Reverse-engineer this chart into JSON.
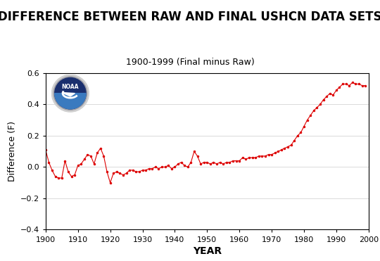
{
  "title": "DIFFERENCE BETWEEN RAW AND FINAL USHCN DATA SETS",
  "subtitle": "1900-1999 (Final minus Raw)",
  "xlabel": "YEAR",
  "ylabel": "Difference (F)",
  "xlim": [
    1900,
    2000
  ],
  "ylim": [
    -0.4,
    0.6
  ],
  "yticks": [
    -0.4,
    -0.2,
    0.0,
    0.2,
    0.4,
    0.6
  ],
  "xticks": [
    1900,
    1910,
    1920,
    1930,
    1940,
    1950,
    1960,
    1970,
    1980,
    1990,
    2000
  ],
  "line_color": "#dd0000",
  "marker_color": "#dd0000",
  "background_color": "#ffffff",
  "title_fontsize": 12,
  "subtitle_fontsize": 9,
  "xlabel_fontsize": 10,
  "ylabel_fontsize": 9,
  "tick_fontsize": 8,
  "years": [
    1900,
    1901,
    1902,
    1903,
    1904,
    1905,
    1906,
    1907,
    1908,
    1909,
    1910,
    1911,
    1912,
    1913,
    1914,
    1915,
    1916,
    1917,
    1918,
    1919,
    1920,
    1921,
    1922,
    1923,
    1924,
    1925,
    1926,
    1927,
    1928,
    1929,
    1930,
    1931,
    1932,
    1933,
    1934,
    1935,
    1936,
    1937,
    1938,
    1939,
    1940,
    1941,
    1942,
    1943,
    1944,
    1945,
    1946,
    1947,
    1948,
    1949,
    1950,
    1951,
    1952,
    1953,
    1954,
    1955,
    1956,
    1957,
    1958,
    1959,
    1960,
    1961,
    1962,
    1963,
    1964,
    1965,
    1966,
    1967,
    1968,
    1969,
    1970,
    1971,
    1972,
    1973,
    1974,
    1975,
    1976,
    1977,
    1978,
    1979,
    1980,
    1981,
    1982,
    1983,
    1984,
    1985,
    1986,
    1987,
    1988,
    1989,
    1990,
    1991,
    1992,
    1993,
    1994,
    1995,
    1996,
    1997,
    1998,
    1999
  ],
  "values": [
    0.11,
    0.03,
    -0.02,
    -0.06,
    -0.07,
    -0.07,
    0.04,
    -0.03,
    -0.06,
    -0.05,
    0.01,
    0.02,
    0.05,
    0.08,
    0.07,
    0.02,
    0.09,
    0.12,
    0.07,
    -0.03,
    -0.1,
    -0.04,
    -0.03,
    -0.04,
    -0.05,
    -0.04,
    -0.02,
    -0.02,
    -0.03,
    -0.03,
    -0.02,
    -0.02,
    -0.01,
    -0.01,
    0.0,
    -0.01,
    0.0,
    0.0,
    0.01,
    -0.01,
    0.0,
    0.02,
    0.03,
    0.01,
    0.0,
    0.03,
    0.1,
    0.07,
    0.02,
    0.03,
    0.03,
    0.02,
    0.03,
    0.02,
    0.03,
    0.02,
    0.03,
    0.03,
    0.04,
    0.04,
    0.04,
    0.06,
    0.05,
    0.06,
    0.06,
    0.06,
    0.07,
    0.07,
    0.07,
    0.08,
    0.08,
    0.09,
    0.1,
    0.11,
    0.12,
    0.13,
    0.14,
    0.17,
    0.2,
    0.22,
    0.26,
    0.3,
    0.33,
    0.36,
    0.38,
    0.4,
    0.43,
    0.45,
    0.47,
    0.46,
    0.49,
    0.51,
    0.53,
    0.53,
    0.52,
    0.54,
    0.53,
    0.53,
    0.52,
    0.52
  ]
}
